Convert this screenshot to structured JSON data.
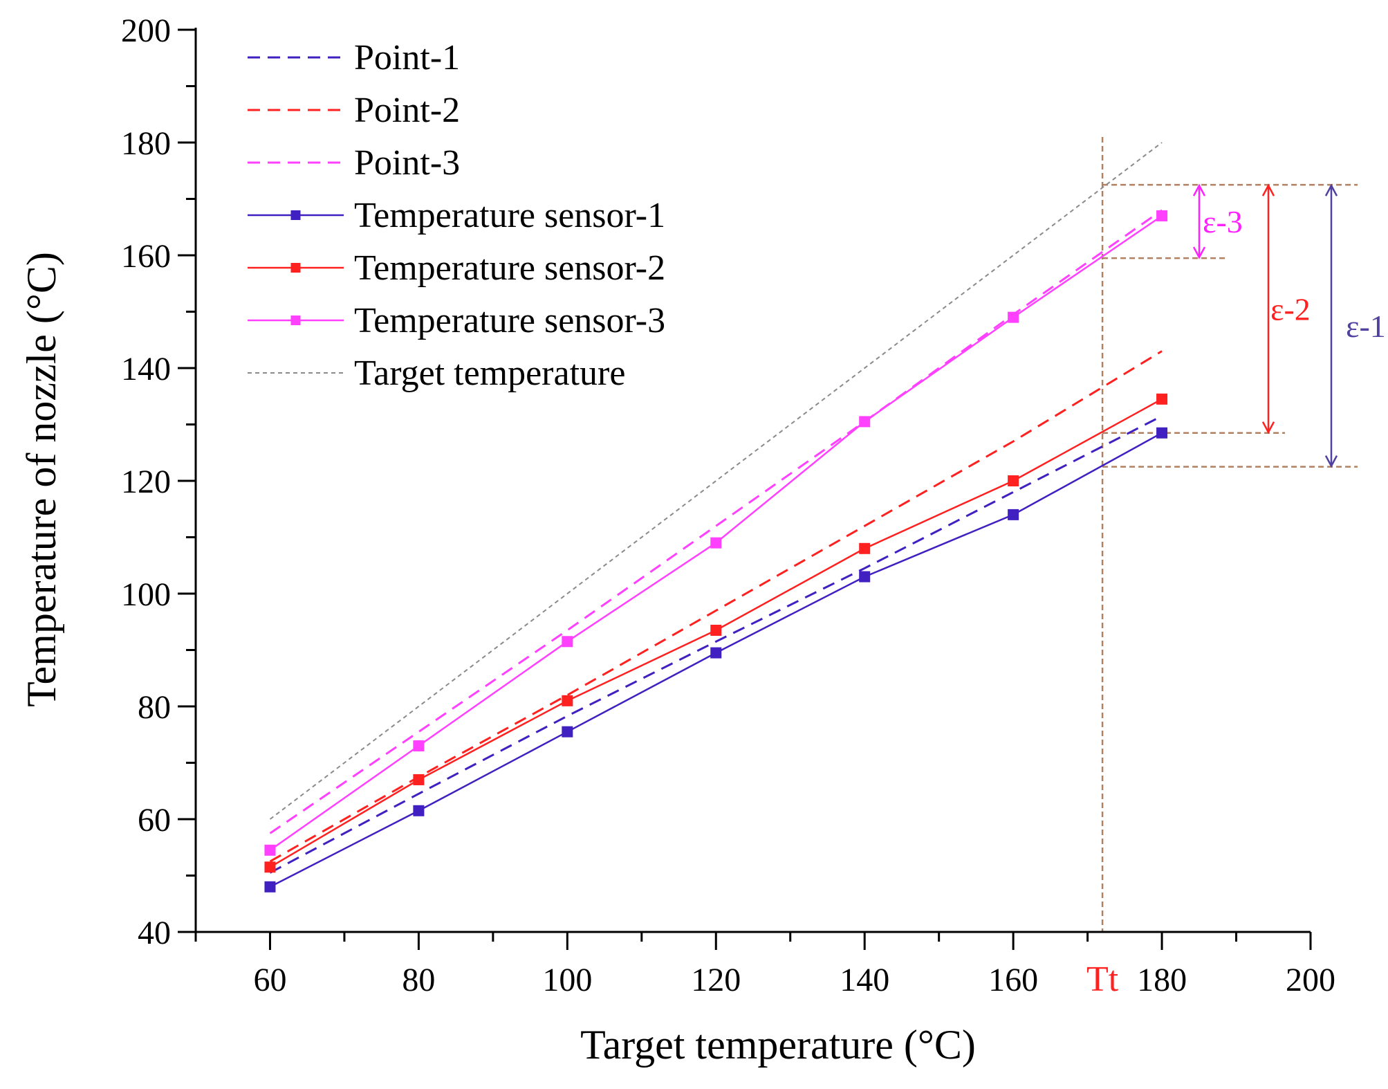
{
  "colors": {
    "series1": "#4020c0",
    "series2": "#ff2020",
    "series3": "#ff40ff",
    "target": "#8a8a8a",
    "guide": "#b08060",
    "eps1": "#5040a0",
    "eps2": "#ff2020",
    "eps3": "#ff20ff",
    "tt": "#ff2020",
    "axis": "#000000"
  },
  "chart_data": {
    "type": "line",
    "title": "",
    "xlabel": "Target temperature  (°C)",
    "ylabel": "Temperature of nozzle (°C)",
    "xlim": [
      50,
      200
    ],
    "ylim": [
      40,
      200
    ],
    "xticks": [
      60,
      80,
      100,
      120,
      140,
      160,
      180,
      200
    ],
    "yticks": [
      40,
      60,
      80,
      100,
      120,
      140,
      160,
      180,
      200
    ],
    "x": [
      60,
      80,
      100,
      120,
      140,
      160,
      180
    ],
    "series": [
      {
        "name": "Point-1",
        "style": "dashed",
        "color_key": "series1",
        "values": [
          50.5,
          64.5,
          78.3,
          91.5,
          104.5,
          118,
          131.5
        ]
      },
      {
        "name": "Point-2",
        "style": "dashed",
        "color_key": "series2",
        "values": [
          52.5,
          67.5,
          82,
          97,
          112,
          127,
          143
        ]
      },
      {
        "name": "Point-3",
        "style": "dashed",
        "color_key": "series3",
        "values": [
          57.5,
          75.5,
          93.5,
          112,
          130.5,
          149.5,
          168
        ]
      },
      {
        "name": "Temperature sensor-1",
        "style": "solid-marker",
        "color_key": "series1",
        "values": [
          48,
          61.5,
          75.5,
          89.5,
          103,
          114,
          128.5
        ]
      },
      {
        "name": "Temperature sensor-2",
        "style": "solid-marker",
        "color_key": "series2",
        "values": [
          51.5,
          67,
          81,
          93.5,
          108,
          120,
          134.5
        ]
      },
      {
        "name": "Temperature sensor-3",
        "style": "solid-marker",
        "color_key": "series3",
        "values": [
          54.5,
          73,
          91.5,
          109,
          130.5,
          149,
          167
        ]
      },
      {
        "name": "Target temperature",
        "style": "dotted",
        "color_key": "target",
        "x": [
          60,
          180
        ],
        "values": [
          60,
          180
        ]
      }
    ],
    "legend_position": "top-left",
    "annotations": {
      "tt_label": "Tt",
      "tt_x": 172,
      "guide_levels": [
        172.5,
        159.5,
        128.5,
        122.5
      ],
      "epsilon": [
        {
          "label": "ε-1",
          "from": 122.5,
          "to": 172.5,
          "color_key": "eps1"
        },
        {
          "label": "ε-2",
          "from": 128.5,
          "to": 172.5,
          "color_key": "eps2"
        },
        {
          "label": "ε-3",
          "from": 159.5,
          "to": 172.5,
          "color_key": "eps3"
        }
      ]
    }
  }
}
